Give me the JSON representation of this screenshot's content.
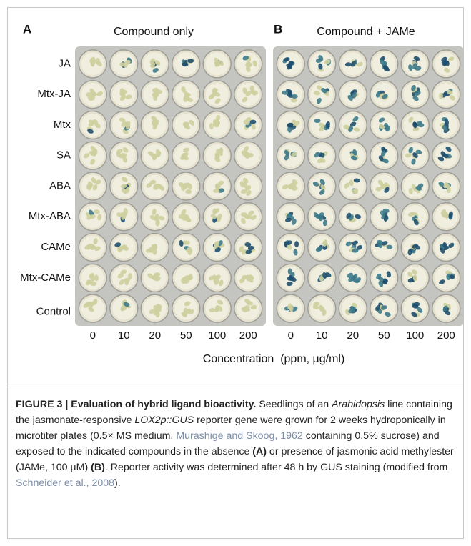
{
  "panels": [
    {
      "label": "A",
      "title": "Compound only"
    },
    {
      "label": "B",
      "title": "Compound + JAMe"
    }
  ],
  "row_labels": [
    "JA",
    "Mtx-JA",
    "Mtx",
    "SA",
    "ABA",
    "Mtx-ABA",
    "CAMe",
    "Mtx-CAMe",
    "Control"
  ],
  "column_labels": [
    "0",
    "10",
    "20",
    "50",
    "100",
    "200"
  ],
  "x_label": "Concentration  (ppm, µg/ml)",
  "caption": {
    "segments": [
      {
        "text": "FIGURE 3 | Evaluation of hybrid ligand bioactivity.",
        "style": "bold"
      },
      {
        "text": " Seedlings of an ",
        "style": "plain"
      },
      {
        "text": "Arabidopsis",
        "style": "italic"
      },
      {
        "text": " line containing the jasmonate-responsive ",
        "style": "plain"
      },
      {
        "text": "LOX2p::GUS",
        "style": "italic"
      },
      {
        "text": " reporter gene were grown for 2 weeks hydroponically in microtiter plates (0.5× MS medium, ",
        "style": "plain"
      },
      {
        "text": "Murashige and Skoog, 1962",
        "style": "link"
      },
      {
        "text": " containing 0.5% sucrose) and exposed to the indicated compounds in the absence ",
        "style": "plain"
      },
      {
        "text": "(A)",
        "style": "bold"
      },
      {
        "text": " or presence of jasmonic acid methylester (JAMe, 100 µM) ",
        "style": "plain"
      },
      {
        "text": "(B)",
        "style": "bold"
      },
      {
        "text": ". Reporter activity was determined after 48 h by GUS staining (modified from ",
        "style": "plain"
      },
      {
        "text": "Schneider et al., 2008",
        "style": "link"
      },
      {
        "text": ").",
        "style": "plain"
      }
    ]
  }
}
